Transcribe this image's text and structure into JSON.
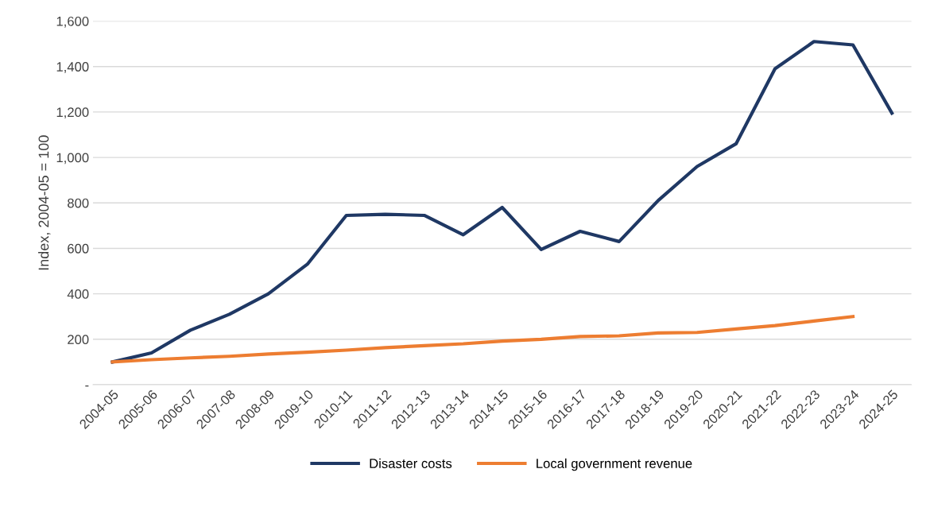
{
  "chart_data": {
    "type": "line",
    "ylabel": "Index, 2004-05 = 100",
    "categories": [
      "2004-05",
      "2005-06",
      "2006-07",
      "2007-08",
      "2008-09",
      "2009-10",
      "2010-11",
      "2011-12",
      "2012-13",
      "2013-14",
      "2014-15",
      "2015-16",
      "2016-17",
      "2017-18",
      "2018-19",
      "2019-20",
      "2020-21",
      "2021-22",
      "2022-23",
      "2023-24",
      "2024-25"
    ],
    "series": [
      {
        "name": "Disaster costs",
        "color": "#1f3864",
        "values": [
          100,
          140,
          240,
          310,
          400,
          530,
          745,
          750,
          745,
          660,
          780,
          595,
          675,
          630,
          810,
          960,
          1060,
          1390,
          1510,
          1495,
          1195
        ]
      },
      {
        "name": "Local government revenue",
        "color": "#ed7d31",
        "values": [
          100,
          110,
          118,
          125,
          135,
          143,
          152,
          163,
          172,
          180,
          192,
          200,
          212,
          215,
          228,
          230,
          245,
          260,
          280,
          300,
          null
        ]
      }
    ],
    "ylim": [
      0,
      1600
    ],
    "yticks": [
      {
        "value": 0,
        "label": "-"
      },
      {
        "value": 200,
        "label": "200"
      },
      {
        "value": 400,
        "label": "400"
      },
      {
        "value": 600,
        "label": "600"
      },
      {
        "value": 800,
        "label": "800"
      },
      {
        "value": 1000,
        "label": "1,000"
      },
      {
        "value": 1200,
        "label": "1,200"
      },
      {
        "value": 1400,
        "label": "1,400"
      },
      {
        "value": 1600,
        "label": "1,600"
      }
    ],
    "grid": "y",
    "legend": "bottom",
    "marker": "none",
    "line_style": "solid"
  }
}
